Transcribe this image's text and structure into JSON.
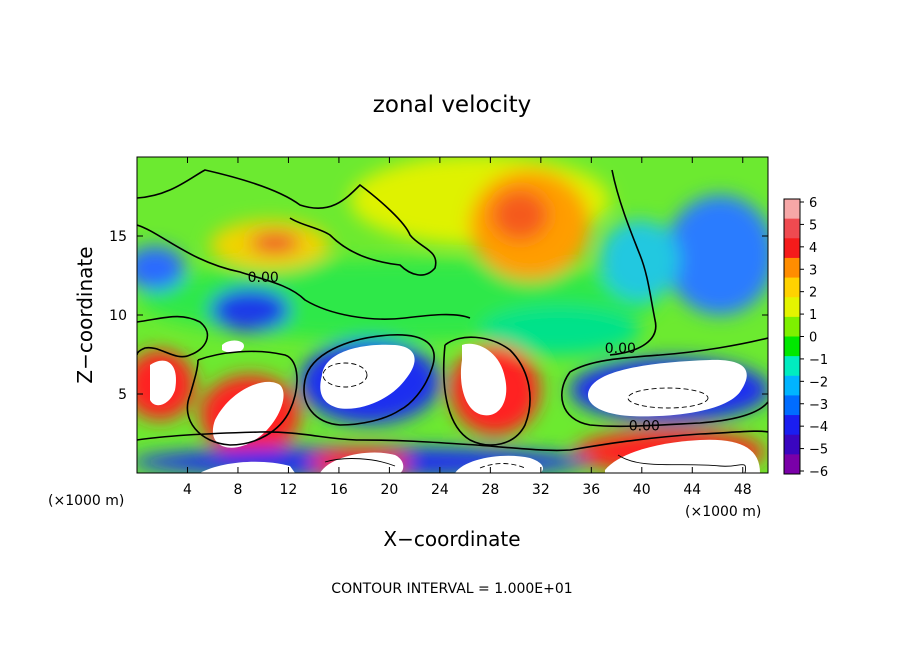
{
  "chart_data": {
    "type": "heatmap",
    "title": "zonal velocity",
    "xlabel": "X−coordinate",
    "ylabel": "Z−coordinate",
    "x_unit_left": "(×1000 m)",
    "x_unit_right": "(×1000 m)",
    "x_ticks": [
      4,
      8,
      12,
      16,
      20,
      24,
      28,
      32,
      36,
      40,
      44,
      48
    ],
    "y_ticks": [
      5,
      10,
      15
    ],
    "xlim": [
      0,
      50
    ],
    "ylim": [
      0,
      20
    ],
    "colorbar": {
      "ticks": [
        "6",
        "5",
        "4",
        "3",
        "2",
        "1",
        "0",
        "−1",
        "−2",
        "−3",
        "−4",
        "−5",
        "−6"
      ],
      "range": [
        -6,
        6
      ],
      "colors": [
        "#f6a7a7",
        "#ef4a50",
        "#f51b1b",
        "#ff8d00",
        "#ffd200",
        "#e4f400",
        "#7ef000",
        "#00e800",
        "#00ecc0",
        "#00b4ff",
        "#006cff",
        "#1a1ef0",
        "#3a06c0",
        "#7a00a8"
      ]
    },
    "contour_labels": [
      {
        "text": "0.00",
        "x": 10.0,
        "z": 12.1
      },
      {
        "text": "0.00",
        "x": 38.3,
        "z": 7.6
      },
      {
        "text": "0.00",
        "x": 40.2,
        "z": 2.7
      }
    ],
    "regions": [
      {
        "x": 30,
        "z": 16,
        "value": 3
      },
      {
        "x": 11,
        "z": 14.5,
        "value": 4
      },
      {
        "x": 46,
        "z": 14,
        "value": -3
      },
      {
        "x": 2,
        "z": 13,
        "value": -3
      },
      {
        "x": 11,
        "z": 9.5,
        "value": -4
      },
      {
        "x": 18.5,
        "z": 6,
        "value": -7
      },
      {
        "x": 40.5,
        "z": 5.2,
        "value": -7
      },
      {
        "x": 2,
        "z": 6,
        "value": 5
      },
      {
        "x": 8.5,
        "z": 4.5,
        "value": 7
      },
      {
        "x": 27.5,
        "z": 6,
        "value": 7
      },
      {
        "x": 42,
        "z": 2,
        "value": 7
      },
      {
        "x": 19.5,
        "z": 1.5,
        "value": 7
      }
    ],
    "grid": false
  },
  "footer": {
    "contour_interval": "CONTOUR INTERVAL = 1.000E+01"
  }
}
